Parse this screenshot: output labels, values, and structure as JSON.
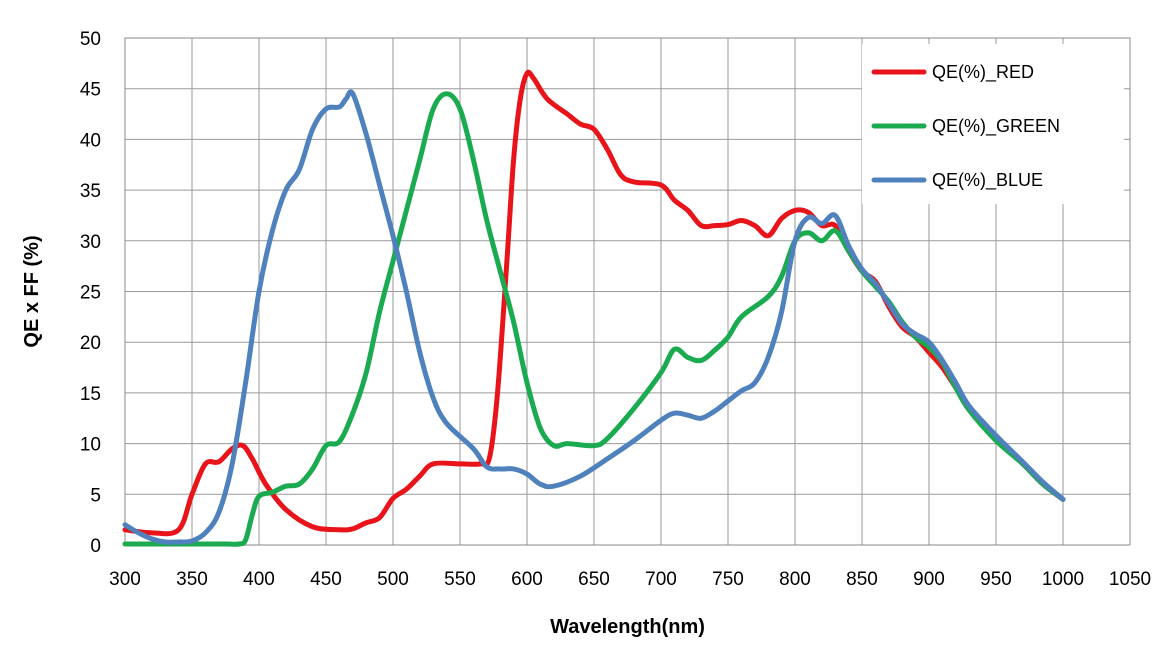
{
  "chart_data": {
    "type": "line",
    "title": "",
    "xlabel": "Wavelength(nm)",
    "ylabel": "QE x FF (%)",
    "xlim": [
      300,
      1050
    ],
    "ylim": [
      0,
      50
    ],
    "x_ticks": [
      300,
      350,
      400,
      450,
      500,
      550,
      600,
      650,
      700,
      750,
      800,
      850,
      900,
      950,
      1000,
      1050
    ],
    "y_ticks": [
      0,
      5,
      10,
      15,
      20,
      25,
      30,
      35,
      40,
      45,
      50
    ],
    "grid": true,
    "legend_position": "top-right",
    "series": [
      {
        "name": "QE(%)_RED",
        "color": "#e8141a",
        "points": [
          [
            300,
            1.5
          ],
          [
            320,
            1.2
          ],
          [
            340,
            1.5
          ],
          [
            350,
            5
          ],
          [
            360,
            8
          ],
          [
            370,
            8.2
          ],
          [
            380,
            9.5
          ],
          [
            388,
            9.8
          ],
          [
            395,
            8.5
          ],
          [
            405,
            6
          ],
          [
            420,
            3.5
          ],
          [
            440,
            1.8
          ],
          [
            460,
            1.5
          ],
          [
            470,
            1.6
          ],
          [
            480,
            2.2
          ],
          [
            490,
            2.7
          ],
          [
            500,
            4.6
          ],
          [
            510,
            5.5
          ],
          [
            520,
            6.8
          ],
          [
            530,
            8
          ],
          [
            550,
            8
          ],
          [
            565,
            8
          ],
          [
            572,
            8.6
          ],
          [
            578,
            15
          ],
          [
            585,
            28
          ],
          [
            590,
            38
          ],
          [
            595,
            44
          ],
          [
            600,
            46.5
          ],
          [
            605,
            46
          ],
          [
            615,
            44
          ],
          [
            630,
            42.5
          ],
          [
            640,
            41.5
          ],
          [
            650,
            41
          ],
          [
            660,
            39
          ],
          [
            670,
            36.5
          ],
          [
            680,
            35.8
          ],
          [
            700,
            35.5
          ],
          [
            710,
            34
          ],
          [
            720,
            33
          ],
          [
            730,
            31.5
          ],
          [
            740,
            31.5
          ],
          [
            750,
            31.6
          ],
          [
            760,
            32
          ],
          [
            770,
            31.5
          ],
          [
            780,
            30.5
          ],
          [
            790,
            32.2
          ],
          [
            800,
            33
          ],
          [
            810,
            32.8
          ],
          [
            820,
            31.5
          ],
          [
            830,
            31.5
          ],
          [
            840,
            29
          ],
          [
            850,
            27
          ],
          [
            860,
            26
          ],
          [
            870,
            23.5
          ],
          [
            880,
            21.5
          ],
          [
            890,
            20.5
          ],
          [
            900,
            19
          ],
          [
            910,
            17.5
          ],
          [
            920,
            15.5
          ],
          [
            930,
            13.5
          ],
          [
            950,
            10.5
          ],
          [
            970,
            8
          ],
          [
            985,
            6
          ],
          [
            1000,
            4.5
          ]
        ]
      },
      {
        "name": "QE(%)_GREEN",
        "color": "#1aaa50",
        "points": [
          [
            300,
            0.1
          ],
          [
            330,
            0.1
          ],
          [
            360,
            0.1
          ],
          [
            375,
            0.1
          ],
          [
            385,
            0.1
          ],
          [
            390,
            0.5
          ],
          [
            395,
            3
          ],
          [
            400,
            4.8
          ],
          [
            410,
            5.2
          ],
          [
            420,
            5.8
          ],
          [
            430,
            6
          ],
          [
            440,
            7.5
          ],
          [
            450,
            9.8
          ],
          [
            460,
            10.2
          ],
          [
            470,
            13
          ],
          [
            480,
            17
          ],
          [
            490,
            23
          ],
          [
            500,
            28
          ],
          [
            510,
            33
          ],
          [
            520,
            38
          ],
          [
            530,
            43
          ],
          [
            540,
            44.5
          ],
          [
            550,
            43
          ],
          [
            560,
            38
          ],
          [
            570,
            32
          ],
          [
            580,
            27
          ],
          [
            590,
            22
          ],
          [
            600,
            16
          ],
          [
            610,
            11.5
          ],
          [
            620,
            9.8
          ],
          [
            630,
            10
          ],
          [
            650,
            9.8
          ],
          [
            660,
            10.5
          ],
          [
            680,
            13.5
          ],
          [
            700,
            17
          ],
          [
            710,
            19.3
          ],
          [
            720,
            18.5
          ],
          [
            730,
            18.2
          ],
          [
            740,
            19.2
          ],
          [
            750,
            20.5
          ],
          [
            760,
            22.5
          ],
          [
            780,
            24.5
          ],
          [
            790,
            26.5
          ],
          [
            800,
            30
          ],
          [
            810,
            30.8
          ],
          [
            820,
            30
          ],
          [
            830,
            31
          ],
          [
            840,
            29
          ],
          [
            850,
            27
          ],
          [
            860,
            25.5
          ],
          [
            870,
            24
          ],
          [
            880,
            22
          ],
          [
            890,
            20.5
          ],
          [
            900,
            19.5
          ],
          [
            910,
            18
          ],
          [
            920,
            15.5
          ],
          [
            930,
            13.3
          ],
          [
            950,
            10.3
          ],
          [
            970,
            8
          ],
          [
            985,
            6
          ],
          [
            1000,
            4.5
          ]
        ]
      },
      {
        "name": "QE(%)_BLUE",
        "color": "#4f81bd",
        "points": [
          [
            300,
            2
          ],
          [
            310,
            1.2
          ],
          [
            320,
            0.6
          ],
          [
            330,
            0.3
          ],
          [
            340,
            0.3
          ],
          [
            350,
            0.4
          ],
          [
            360,
            1.2
          ],
          [
            370,
            3.2
          ],
          [
            380,
            8
          ],
          [
            390,
            16
          ],
          [
            400,
            25
          ],
          [
            410,
            31
          ],
          [
            420,
            35
          ],
          [
            430,
            37
          ],
          [
            440,
            41
          ],
          [
            450,
            43
          ],
          [
            460,
            43.2
          ],
          [
            465,
            44
          ],
          [
            470,
            44.5
          ],
          [
            480,
            40.5
          ],
          [
            490,
            35.5
          ],
          [
            500,
            30.5
          ],
          [
            510,
            25
          ],
          [
            520,
            19
          ],
          [
            530,
            14.5
          ],
          [
            540,
            12
          ],
          [
            560,
            9.5
          ],
          [
            570,
            7.7
          ],
          [
            580,
            7.5
          ],
          [
            590,
            7.5
          ],
          [
            600,
            7
          ],
          [
            610,
            6
          ],
          [
            620,
            5.8
          ],
          [
            640,
            6.8
          ],
          [
            660,
            8.5
          ],
          [
            680,
            10.3
          ],
          [
            700,
            12.3
          ],
          [
            710,
            13
          ],
          [
            720,
            12.8
          ],
          [
            730,
            12.5
          ],
          [
            740,
            13.2
          ],
          [
            750,
            14.2
          ],
          [
            760,
            15.2
          ],
          [
            770,
            16
          ],
          [
            780,
            18.5
          ],
          [
            790,
            23
          ],
          [
            800,
            30
          ],
          [
            810,
            32.3
          ],
          [
            820,
            31.7
          ],
          [
            830,
            32.5
          ],
          [
            840,
            29.5
          ],
          [
            850,
            27.2
          ],
          [
            860,
            25.8
          ],
          [
            870,
            23.8
          ],
          [
            880,
            21.8
          ],
          [
            890,
            20.8
          ],
          [
            900,
            20
          ],
          [
            910,
            18.2
          ],
          [
            920,
            16
          ],
          [
            930,
            13.7
          ],
          [
            950,
            10.8
          ],
          [
            970,
            8.2
          ],
          [
            985,
            6.2
          ],
          [
            1000,
            4.5
          ]
        ]
      }
    ]
  }
}
